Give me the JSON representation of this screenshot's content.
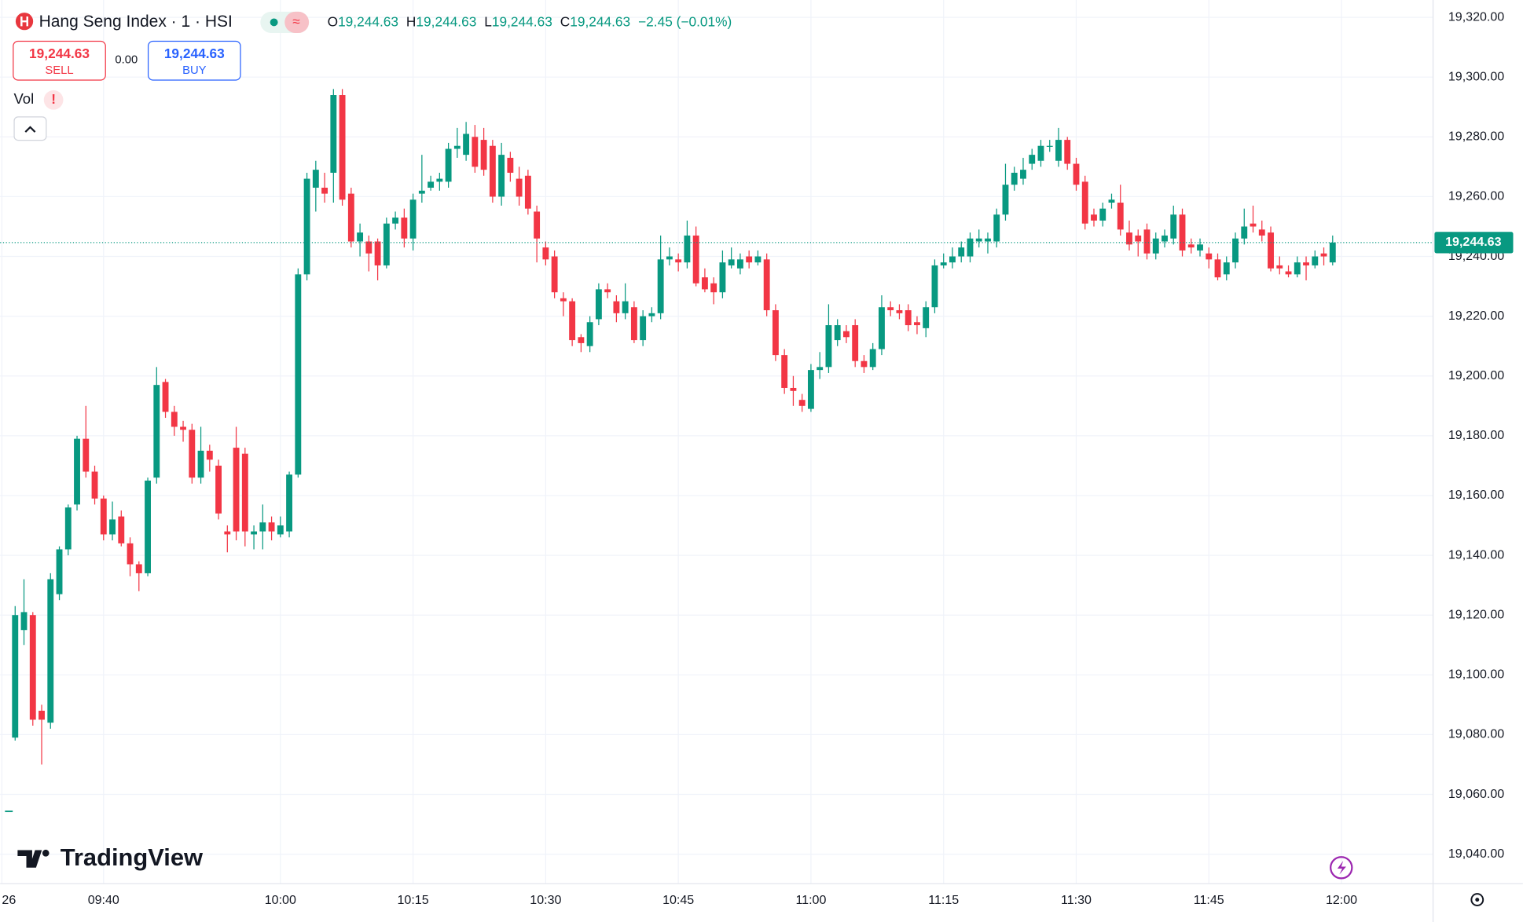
{
  "chart_data": {
    "type": "candlestick",
    "title": "Hang Seng Index · 1 · HSI",
    "header_values": [
      {
        "label": "O",
        "value": "19,244.63"
      },
      {
        "label": "H",
        "value": "19,244.63"
      },
      {
        "label": "L",
        "value": "19,244.63"
      },
      {
        "label": "C",
        "value": "19,244.63"
      }
    ],
    "change": "−2.45 (−0.01%)",
    "sell": {
      "price": "19,244.63",
      "label": "SELL"
    },
    "spread": "0.00",
    "buy": {
      "price": "19,244.63",
      "label": "BUY"
    },
    "indicator": "Vol",
    "brand": "TradingView",
    "up_color": "#089981",
    "down_color": "#f23645",
    "last_price": {
      "value": 19244.63,
      "label": "19,244.63"
    },
    "grid": true,
    "x": [
      570,
      571,
      572,
      573,
      574,
      575,
      576,
      577,
      578,
      579,
      580,
      581,
      582,
      583,
      584,
      585,
      586,
      587,
      588,
      589,
      590,
      591,
      592,
      593,
      594,
      595,
      596,
      597,
      598,
      599,
      600,
      601,
      602,
      603,
      604,
      605,
      606,
      607,
      608,
      609,
      610,
      611,
      612,
      613,
      614,
      615,
      616,
      617,
      618,
      619,
      620,
      621,
      622,
      623,
      624,
      625,
      626,
      627,
      628,
      629,
      630,
      631,
      632,
      633,
      634,
      635,
      636,
      637,
      638,
      639,
      640,
      641,
      642,
      643,
      644,
      645,
      646,
      647,
      648,
      649,
      650,
      651,
      652,
      653,
      654,
      655,
      656,
      657,
      658,
      659,
      660,
      661,
      662,
      663,
      664,
      665,
      666,
      667,
      668,
      669,
      670,
      671,
      672,
      673,
      674,
      675,
      676,
      677,
      678,
      679,
      680,
      681,
      682,
      683,
      684,
      685,
      686,
      687,
      688,
      689,
      690,
      691,
      692,
      693,
      694,
      695,
      696,
      697,
      698,
      699,
      700,
      701,
      702,
      703,
      704,
      705,
      706,
      707,
      708,
      709,
      710,
      711,
      712,
      713,
      714,
      715,
      716,
      717,
      718,
      719
    ],
    "open": [
      19079,
      19115,
      19120,
      19088,
      19084,
      19127,
      19142,
      19157,
      19179,
      19168,
      19159,
      19147,
      19153,
      19144,
      19137,
      19134,
      19166,
      19198,
      19188,
      19183,
      19182,
      19166,
      19175,
      19170,
      19148,
      19176,
      19174,
      19147,
      19148,
      19151,
      19147,
      19148,
      19167,
      19234,
      19263,
      19263,
      19268,
      19294,
      19261,
      19245,
      19245,
      19245,
      19237,
      19251,
      19253,
      19246,
      19261,
      19263,
      19265,
      19265,
      19276,
      19274,
      19280,
      19279,
      19277,
      19260,
      19273,
      19266,
      19267,
      19255,
      19243,
      19240,
      19226,
      19225,
      19213,
      19210,
      19219,
      19229,
      19225,
      19221,
      19223,
      19212,
      19220,
      19221,
      19239,
      19239,
      19238,
      19247,
      19233,
      19231,
      19228,
      19237,
      19236,
      19240,
      19238,
      19239,
      19222,
      19207,
      19196,
      19192,
      19189,
      19202,
      19203,
      19212,
      19215,
      19217,
      19205,
      19203,
      19209,
      19223,
      19222,
      19222,
      19218,
      19216,
      19223,
      19237,
      19238,
      19240,
      19240,
      19245,
      19245,
      19245,
      19254,
      19264,
      19266,
      19271,
      19272,
      19277,
      19272,
      19279,
      19271,
      19265,
      19254,
      19252,
      19258,
      19258,
      19248,
      19247,
      19249,
      19241,
      19245,
      19246,
      19254,
      19244,
      19242,
      19241,
      19239,
      19234,
      19238,
      19246,
      19251,
      19249,
      19248,
      19237,
      19235,
      19234,
      19238,
      19237,
      19241,
      19238
    ],
    "high": [
      19123,
      19132,
      19121,
      19090,
      19134,
      19143,
      19157,
      19180,
      19190,
      19170,
      19160,
      19158,
      19155,
      19146,
      19138,
      19166,
      19203,
      19199,
      19190,
      19185,
      19184,
      19183,
      19177,
      19172,
      19150,
      19183,
      19176,
      19150,
      19157,
      19153,
      19153,
      19168,
      19236,
      19268,
      19272,
      19268,
      19296,
      19296,
      19263,
      19251,
      19247,
      19246,
      19253,
      19255,
      19256,
      19261,
      19274,
      19267,
      19268,
      19278,
      19283,
      19285,
      19284,
      19283,
      19279,
      19278,
      19275,
      19270,
      19269,
      19257,
      19245,
      19242,
      19228,
      19226,
      19214,
      19220,
      19231,
      19231,
      19227,
      19231,
      19225,
      19222,
      19223,
      19247,
      19243,
      19241,
      19252,
      19250,
      19236,
      19233,
      19242,
      19243,
      19241,
      19242,
      19242,
      19241,
      19224,
      19209,
      19200,
      19194,
      19204,
      19208,
      19224,
      19219,
      19217,
      19219,
      19207,
      19211,
      19227,
      19225,
      19224,
      19224,
      19220,
      19225,
      19239,
      19241,
      19243,
      19245,
      19248,
      19249,
      19248,
      19256,
      19271,
      19270,
      19273,
      19276,
      19279,
      19279,
      19283,
      19280,
      19273,
      19267,
      19256,
      19258,
      19261,
      19264,
      19252,
      19249,
      19251,
      19248,
      19249,
      19257,
      19256,
      19246,
      19246,
      19243,
      19241,
      19240,
      19248,
      19256,
      19257,
      19252,
      19250,
      19240,
      19237,
      19240,
      19240,
      19242,
      19243,
      19247
    ],
    "low": [
      19078,
      19110,
      19083,
      19070,
      19082,
      19125,
      19140,
      19155,
      19166,
      19157,
      19145,
      19145,
      19143,
      19133,
      19128,
      19133,
      19164,
      19186,
      19180,
      19178,
      19164,
      19164,
      19168,
      19152,
      19141,
      19145,
      19143,
      19142,
      19142,
      19145,
      19146,
      19146,
      19166,
      19232,
      19255,
      19258,
      19258,
      19257,
      19243,
      19240,
      19235,
      19232,
      19236,
      19249,
      19243,
      19242,
      19258,
      19262,
      19262,
      19263,
      19273,
      19272,
      19268,
      19267,
      19258,
      19257,
      19265,
      19257,
      19254,
      19238,
      19237,
      19226,
      19220,
      19210,
      19208,
      19208,
      19217,
      19226,
      19218,
      19219,
      19211,
      19210,
      19218,
      19219,
      19237,
      19235,
      19236,
      19230,
      19228,
      19224,
      19226,
      19236,
      19234,
      19236,
      19237,
      19220,
      19205,
      19194,
      19190,
      19188,
      19188,
      19199,
      19201,
      19210,
      19211,
      19203,
      19201,
      19202,
      19207,
      19220,
      19219,
      19215,
      19214,
      19213,
      19221,
      19236,
      19236,
      19238,
      19238,
      19243,
      19241,
      19243,
      19252,
      19262,
      19264,
      19269,
      19270,
      19275,
      19270,
      19269,
      19262,
      19249,
      19250,
      19250,
      19256,
      19247,
      19242,
      19240,
      19239,
      19239,
      19243,
      19244,
      19240,
      19241,
      19240,
      19236,
      19232,
      19232,
      19236,
      19244,
      19248,
      19245,
      19235,
      19234,
      19233,
      19233,
      19232,
      19236,
      19237,
      19237
    ],
    "close": [
      19120,
      19121,
      19085,
      19085,
      19132,
      19142,
      19156,
      19179,
      19168,
      19159,
      19147,
      19152,
      19144,
      19137,
      19134,
      19165,
      19197,
      19188,
      19183,
      19182,
      19166,
      19175,
      19172,
      19154,
      19147,
      19148,
      19148,
      19148,
      19151,
      19148,
      19150,
      19167,
      19234,
      19266,
      19269,
      19261,
      19294,
      19259,
      19245,
      19248,
      19241,
      19237,
      19251,
      19253,
      19246,
      19259,
      19262,
      19265,
      19266,
      19276,
      19277,
      19281,
      19270,
      19269,
      19260,
      19274,
      19268,
      19260,
      19256,
      19246,
      19239,
      19228,
      19225,
      19212,
      19211,
      19218,
      19229,
      19228,
      19221,
      19225,
      19212,
      19220,
      19221,
      19239,
      19240,
      19238,
      19247,
      19231,
      19229,
      19228,
      19238,
      19239,
      19239,
      19238,
      19240,
      19222,
      19207,
      19196,
      19195,
      19190,
      19202,
      19203,
      19217,
      19217,
      19213,
      19205,
      19203,
      19209,
      19223,
      19222,
      19221,
      19217,
      19217,
      19223,
      19237,
      19238,
      19240,
      19243,
      19246,
      19246,
      19246,
      19254,
      19264,
      19268,
      19269,
      19274,
      19277,
      19277,
      19279,
      19271,
      19264,
      19251,
      19252,
      19256,
      19259,
      19249,
      19244,
      19245,
      19241,
      19246,
      19247,
      19254,
      19242,
      19243,
      19244,
      19239,
      19233,
      19238,
      19246,
      19250,
      19250,
      19247,
      19236,
      19236,
      19234,
      19238,
      19237,
      19240,
      19240,
      19244.63
    ],
    "xlim": [
      568.3,
      730.3
    ],
    "xticks": [
      {
        "value": 568.5,
        "label": "26"
      },
      {
        "value": 580,
        "label": "09:40"
      },
      {
        "value": 600,
        "label": "10:00"
      },
      {
        "value": 615,
        "label": "10:15"
      },
      {
        "value": 630,
        "label": "10:30"
      },
      {
        "value": 645,
        "label": "10:45"
      },
      {
        "value": 660,
        "label": "11:00"
      },
      {
        "value": 675,
        "label": "11:15"
      },
      {
        "value": 690,
        "label": "11:30"
      },
      {
        "value": 705,
        "label": "11:45"
      },
      {
        "value": 720,
        "label": "12:00"
      }
    ],
    "ylim": [
      19030.3,
      19325.8
    ],
    "yticks": [
      {
        "value": 19040,
        "label": "19,040.00"
      },
      {
        "value": 19060,
        "label": "19,060.00"
      },
      {
        "value": 19080,
        "label": "19,080.00"
      },
      {
        "value": 19100,
        "label": "19,100.00"
      },
      {
        "value": 19120,
        "label": "19,120.00"
      },
      {
        "value": 19140,
        "label": "19,140.00"
      },
      {
        "value": 19160,
        "label": "19,160.00"
      },
      {
        "value": 19180,
        "label": "19,180.00"
      },
      {
        "value": 19200,
        "label": "19,200.00"
      },
      {
        "value": 19220,
        "label": "19,220.00"
      },
      {
        "value": 19240,
        "label": "19,240.00"
      },
      {
        "value": 19260,
        "label": "19,260.00"
      },
      {
        "value": 19280,
        "label": "19,280.00"
      },
      {
        "value": 19300,
        "label": "19,300.00"
      },
      {
        "value": 19320,
        "label": "19,320.00"
      }
    ]
  }
}
